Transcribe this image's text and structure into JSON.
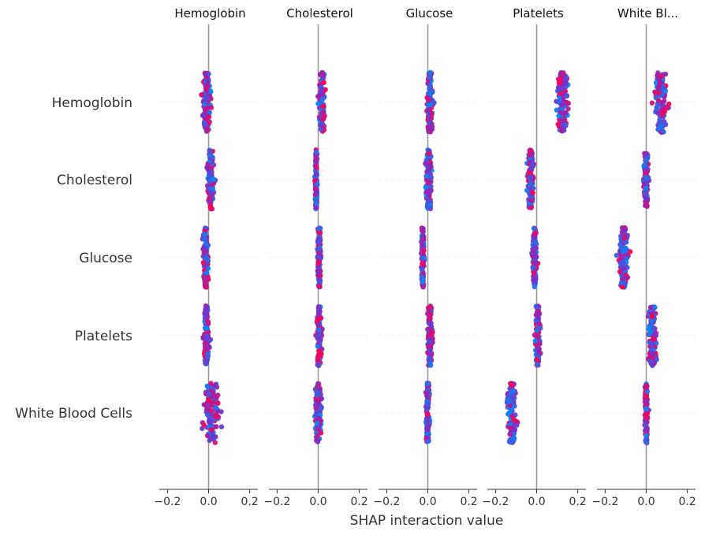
{
  "chart_data": {
    "type": "scatter",
    "subtype": "shap-interaction-beeswarm-grid",
    "xlabel": "SHAP interaction value",
    "xlim": [
      -0.24,
      0.24
    ],
    "xticks": [
      -0.2,
      0.0,
      0.2
    ],
    "xtick_labels": [
      "−0.2",
      "0.0",
      "0.2"
    ],
    "features": [
      "Hemoglobin",
      "Cholesterol",
      "Glucose",
      "Platelets",
      "White Blood Cells"
    ],
    "column_titles": [
      "Hemoglobin",
      "Cholesterol",
      "Glucose",
      "Platelets",
      "White Bl..."
    ],
    "grid": "horizontal dotted row guides",
    "color_map": {
      "low": "#008bfb",
      "mid": "#7b2ec9",
      "high": "#ff0052"
    },
    "zero_line_color": "#999999",
    "cells": [
      [
        {
          "center": -0.01,
          "spread": 0.025,
          "half_height": 0.55
        },
        {
          "center": 0.02,
          "spread": 0.02,
          "half_height": 0.55
        },
        {
          "center": 0.01,
          "spread": 0.02,
          "half_height": 0.55
        },
        {
          "center": 0.125,
          "spread": 0.04,
          "half_height": 0.55
        },
        {
          "center": 0.07,
          "spread": 0.04,
          "half_height": 0.55
        }
      ],
      [
        {
          "center": 0.01,
          "spread": 0.02,
          "half_height": 0.55
        },
        {
          "center": -0.01,
          "spread": 0.008,
          "half_height": 0.55
        },
        {
          "center": 0.005,
          "spread": 0.02,
          "half_height": 0.55
        },
        {
          "center": -0.03,
          "spread": 0.02,
          "half_height": 0.55
        },
        {
          "center": 0.0,
          "spread": 0.015,
          "half_height": 0.5
        }
      ],
      [
        {
          "center": -0.015,
          "spread": 0.018,
          "half_height": 0.55
        },
        {
          "center": 0.005,
          "spread": 0.01,
          "half_height": 0.55
        },
        {
          "center": -0.025,
          "spread": 0.01,
          "half_height": 0.55
        },
        {
          "center": -0.01,
          "spread": 0.015,
          "half_height": 0.55
        },
        {
          "center": -0.11,
          "spread": 0.03,
          "half_height": 0.55
        }
      ],
      [
        {
          "center": -0.01,
          "spread": 0.02,
          "half_height": 0.55
        },
        {
          "center": 0.005,
          "spread": 0.018,
          "half_height": 0.55
        },
        {
          "center": 0.01,
          "spread": 0.015,
          "half_height": 0.55
        },
        {
          "center": 0.005,
          "spread": 0.015,
          "half_height": 0.55
        },
        {
          "center": 0.03,
          "spread": 0.03,
          "half_height": 0.55
        }
      ],
      [
        {
          "center": 0.015,
          "spread": 0.06,
          "half_height": 0.55
        },
        {
          "center": 0.0,
          "spread": 0.02,
          "half_height": 0.55
        },
        {
          "center": 0.0,
          "spread": 0.012,
          "half_height": 0.55
        },
        {
          "center": -0.12,
          "spread": 0.03,
          "half_height": 0.55
        },
        {
          "center": 0.0,
          "spread": 0.01,
          "half_height": 0.55
        }
      ]
    ]
  }
}
